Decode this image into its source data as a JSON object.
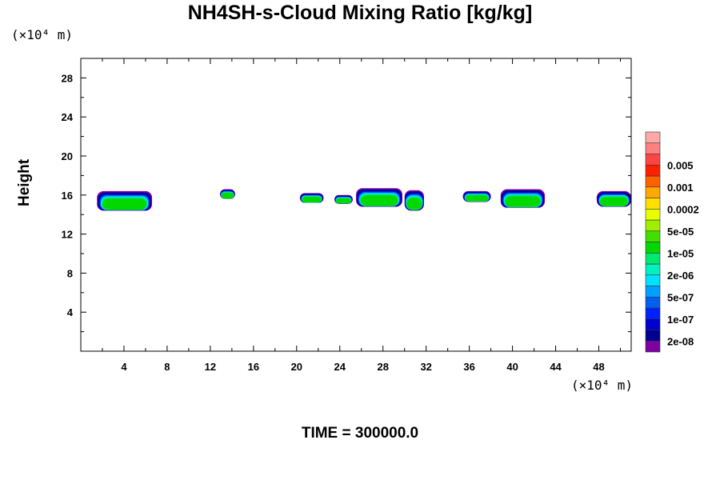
{
  "chart_data": {
    "type": "heatmap",
    "title": "NH4SH-s-Cloud Mixing Ratio [kg/kg]",
    "ylabel": "Height",
    "xunit_label": "(×10⁴ m)",
    "yunit_label": "(×10⁴ m)",
    "footer": "TIME = 300000.0",
    "xlim": [
      0,
      51
    ],
    "ylim": [
      0,
      30
    ],
    "x_ticks": [
      4,
      8,
      12,
      16,
      20,
      24,
      28,
      32,
      36,
      40,
      44,
      48
    ],
    "y_ticks": [
      4,
      8,
      12,
      16,
      20,
      24,
      28
    ],
    "colorbar": {
      "colors": [
        "#7f00a0",
        "#000090",
        "#0000cc",
        "#0020ff",
        "#0060f0",
        "#00a0ff",
        "#00e0ff",
        "#00f0c0",
        "#00e870",
        "#00d800",
        "#40e000",
        "#a0ee00",
        "#e8ff00",
        "#ffe000",
        "#ffa800",
        "#ff6000",
        "#ff2000",
        "#ff4444",
        "#ff8080",
        "#ffa8a8"
      ],
      "labels": [
        "2e-08",
        "1e-07",
        "5e-07",
        "2e-06",
        "1e-05",
        "5e-05",
        "0.0002",
        "0.001",
        "0.005"
      ]
    },
    "cloud_layers": [
      {
        "x_min": 1.5,
        "x_max": 6.6,
        "y_min": 14.4,
        "y_max": 16.4
      },
      {
        "x_min": 12.9,
        "x_max": 14.3,
        "y_min": 15.6,
        "y_max": 16.6
      },
      {
        "x_min": 20.3,
        "x_max": 22.5,
        "y_min": 15.2,
        "y_max": 16.2
      },
      {
        "x_min": 23.5,
        "x_max": 25.2,
        "y_min": 15.1,
        "y_max": 16.0
      },
      {
        "x_min": 25.5,
        "x_max": 29.8,
        "y_min": 14.8,
        "y_max": 16.7
      },
      {
        "x_min": 30.0,
        "x_max": 31.8,
        "y_min": 14.4,
        "y_max": 16.5
      },
      {
        "x_min": 35.4,
        "x_max": 38.0,
        "y_min": 15.3,
        "y_max": 16.4
      },
      {
        "x_min": 38.9,
        "x_max": 43.0,
        "y_min": 14.7,
        "y_max": 16.6
      },
      {
        "x_min": 47.8,
        "x_max": 51.0,
        "y_min": 14.8,
        "y_max": 16.4
      }
    ]
  }
}
